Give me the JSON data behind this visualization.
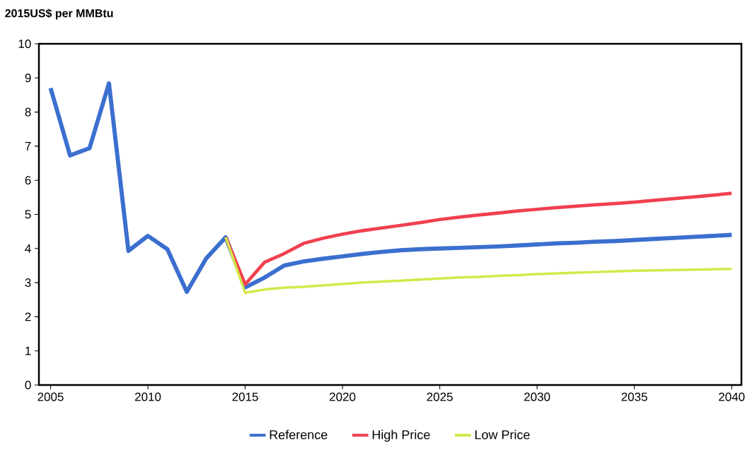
{
  "chart_data": {
    "type": "line",
    "ylabel": "2015US$ per MMBtu",
    "x": [
      2005,
      2006,
      2007,
      2008,
      2009,
      2010,
      2011,
      2012,
      2013,
      2014,
      2015,
      2016,
      2017,
      2018,
      2019,
      2020,
      2021,
      2022,
      2023,
      2024,
      2025,
      2026,
      2027,
      2028,
      2029,
      2030,
      2031,
      2032,
      2033,
      2034,
      2035,
      2036,
      2037,
      2038,
      2039,
      2040
    ],
    "series": [
      {
        "name": "Reference",
        "color": "#3b6fcf",
        "values": [
          8.7,
          6.73,
          6.94,
          8.84,
          3.93,
          4.37,
          3.98,
          2.73,
          3.71,
          4.33,
          2.86,
          3.15,
          3.5,
          3.62,
          3.7,
          3.77,
          3.84,
          3.9,
          3.95,
          3.98,
          4.0,
          4.02,
          4.04,
          4.06,
          4.09,
          4.12,
          4.15,
          4.17,
          4.2,
          4.22,
          4.25,
          4.28,
          4.31,
          4.34,
          4.37,
          4.4
        ]
      },
      {
        "name": "High Price",
        "color": "#f0404f",
        "values": [
          null,
          null,
          null,
          null,
          null,
          null,
          null,
          null,
          null,
          4.33,
          2.95,
          3.6,
          3.85,
          4.15,
          4.3,
          4.42,
          4.52,
          4.6,
          4.68,
          4.76,
          4.85,
          4.92,
          4.98,
          5.04,
          5.1,
          5.15,
          5.2,
          5.24,
          5.28,
          5.32,
          5.36,
          5.41,
          5.46,
          5.51,
          5.56,
          5.62
        ]
      },
      {
        "name": "Low Price",
        "color": "#d4e84a",
        "values": [
          null,
          null,
          null,
          null,
          null,
          null,
          null,
          null,
          null,
          4.33,
          2.7,
          2.8,
          2.85,
          2.88,
          2.92,
          2.96,
          3.0,
          3.03,
          3.06,
          3.09,
          3.12,
          3.15,
          3.17,
          3.2,
          3.22,
          3.25,
          3.27,
          3.29,
          3.31,
          3.33,
          3.35,
          3.36,
          3.37,
          3.38,
          3.39,
          3.4
        ]
      }
    ],
    "xlim": [
      2004.4,
      2040.5
    ],
    "xticks": [
      2005,
      2010,
      2015,
      2020,
      2025,
      2030,
      2035,
      2040
    ],
    "ylim": [
      0,
      10
    ],
    "yticks": [
      0,
      1,
      2,
      3,
      4,
      5,
      6,
      7,
      8,
      9,
      10
    ],
    "legend": "bottom",
    "grid": false,
    "marker": "none",
    "line_style": "solid"
  }
}
